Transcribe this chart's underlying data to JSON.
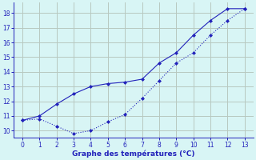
{
  "line1_x": [
    0,
    1,
    2,
    3,
    4,
    5,
    6,
    7,
    8,
    9,
    10,
    11,
    12,
    13
  ],
  "line1_y": [
    10.7,
    10.8,
    10.3,
    9.8,
    10.0,
    10.6,
    11.1,
    12.2,
    13.4,
    14.6,
    15.3,
    16.5,
    17.5,
    18.3
  ],
  "line2_x": [
    0,
    1,
    2,
    3,
    4,
    5,
    6,
    7,
    8,
    9,
    10,
    11,
    12,
    13
  ],
  "line2_y": [
    10.7,
    11.0,
    11.8,
    12.5,
    13.0,
    13.2,
    13.3,
    13.5,
    14.6,
    15.3,
    16.5,
    17.5,
    18.3,
    18.3
  ],
  "line_color": "#2222bb",
  "bg_color": "#d8f5f5",
  "grid_color": "#b8c8c0",
  "xlabel": "Graphe des températures (°C)",
  "xlim": [
    -0.5,
    13.5
  ],
  "ylim": [
    9.5,
    18.7
  ],
  "yticks": [
    10,
    11,
    12,
    13,
    14,
    15,
    16,
    17,
    18
  ],
  "xticks": [
    0,
    1,
    2,
    3,
    4,
    5,
    6,
    7,
    8,
    9,
    10,
    11,
    12,
    13
  ]
}
